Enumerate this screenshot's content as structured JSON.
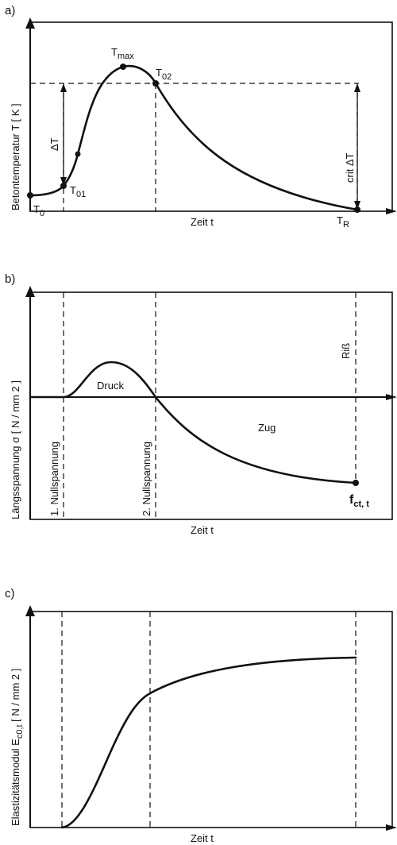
{
  "panel_a": {
    "id": "a)",
    "ylabel": "Betontemperatur  T [ K ]",
    "xlabel": "Zeit  t",
    "point_labels": {
      "t0": "T",
      "t0_sub": "0",
      "t01": "T",
      "t01_sub": "01",
      "tmax": "T",
      "tmax_sub": "max",
      "t02": "T",
      "t02_sub": "02",
      "tr": "T",
      "tr_sub": "R"
    },
    "delta_t": "ΔT",
    "crit_delta_t": "crit ΔT"
  },
  "panel_b": {
    "id": "b)",
    "ylabel": "Längsspannung  σ  [ N / mm 2 ]",
    "xlabel": "Zeit  t",
    "region_compression": "Druck",
    "region_tension": "Zug",
    "first_zero": "1. Nullspannung",
    "second_zero": "2. Nullspannung",
    "crack": "Riß",
    "end_label": "f",
    "end_label_sub": "ct, t"
  },
  "panel_c": {
    "id": "c)",
    "ylabel_main": "Elastizitätsmodul  E",
    "ylabel_sub": "c0,t",
    "ylabel_unit": " [ N / mm 2 ]",
    "xlabel": "Zeit  t"
  }
}
